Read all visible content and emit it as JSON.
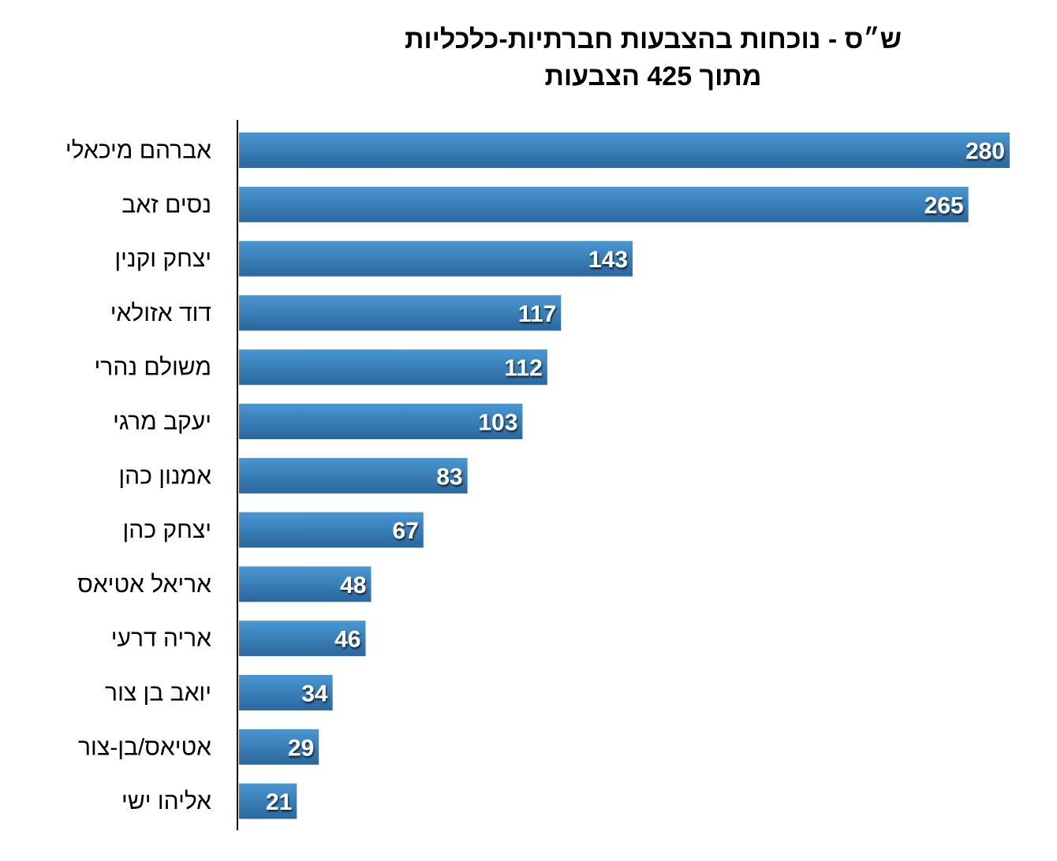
{
  "chart_data": {
    "type": "bar",
    "orientation": "horizontal",
    "title": "ש״ס - נוכחות בהצבעות חברתיות-כלכליות",
    "subtitle": "מתוך 425 הצבעות",
    "categories": [
      "אברהם מיכאלי",
      "נסים זאב",
      "יצחק וקנין",
      "דוד אזולאי",
      "משולם נהרי",
      "יעקב מרגי",
      "אמנון כהן",
      "יצחק כהן",
      "אריאל אטיאס",
      "אריה דרעי",
      "יואב בן צור",
      "אטיאס/בן-צור",
      "אליהו ישי"
    ],
    "values": [
      280,
      265,
      143,
      117,
      112,
      103,
      83,
      67,
      48,
      46,
      34,
      29,
      21
    ],
    "xlim": [
      0,
      280
    ],
    "grid": false,
    "data_labels": true,
    "colors": {
      "bar_top": "#4a97d3",
      "bar_bottom": "#2a679c"
    }
  }
}
